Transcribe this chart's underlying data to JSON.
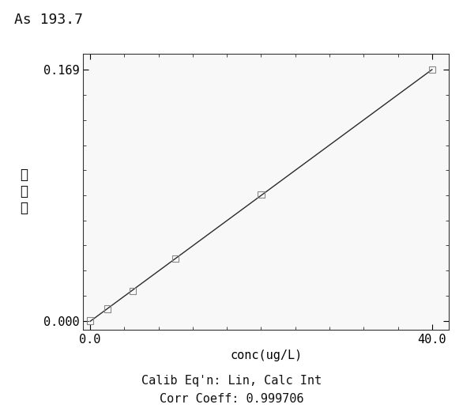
{
  "title": "As 193.7",
  "ylabel_chars": [
    "吸",
    "光",
    "度"
  ],
  "xlabel_display": "conc(ug/L)",
  "x_data": [
    0.0,
    2.0,
    5.0,
    10.0,
    20.0,
    40.0
  ],
  "y_data": [
    0.0,
    0.008,
    0.02,
    0.042,
    0.085,
    0.169
  ],
  "line_color": "#2a2a2a",
  "marker_edge_color": "#888888",
  "fig_bg_color": "#ffffff",
  "plot_bg_color": "#f8f8f8",
  "xlim": [
    -0.8,
    42.0
  ],
  "ylim": [
    -0.006,
    0.18
  ],
  "ytick_labels": [
    "0.000",
    "0.169"
  ],
  "ytick_values": [
    0.0,
    0.169
  ],
  "xtick_labels": [
    "0.0",
    "40.0"
  ],
  "xtick_values": [
    0.0,
    40.0
  ],
  "calib_eq": "Calib Eq'n: Lin, Calc Int",
  "corr_coeff": "Corr Coeff: 0.999706",
  "annotation_fontsize": 11,
  "title_fontsize": 13,
  "tick_fontsize": 11
}
